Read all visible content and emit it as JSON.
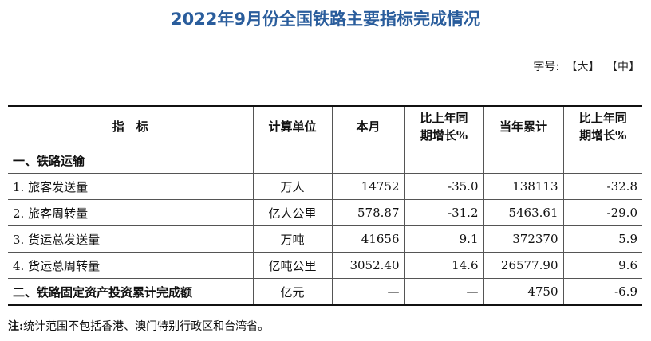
{
  "title": "2022年9月份全国铁路主要指标完成情况",
  "font_size": {
    "label": "字号:",
    "large": "【大】",
    "medium": "【中】"
  },
  "table": {
    "headers": {
      "indicator": "指　标",
      "unit": "计算单位",
      "month": "本月",
      "month_growth_line1": "比上年同",
      "month_growth_line2": "期增长%",
      "ytd": "当年累计",
      "ytd_growth_line1": "比上年同",
      "ytd_growth_line2": "期增长%"
    },
    "rows": [
      {
        "name": "一、铁路运输",
        "unit": "",
        "month": "",
        "month_growth": "",
        "ytd": "",
        "ytd_growth": ""
      },
      {
        "name": "1. 旅客发送量",
        "unit": "万人",
        "month": "14752",
        "month_growth": "-35.0",
        "ytd": "138113",
        "ytd_growth": "-32.8"
      },
      {
        "name": "2. 旅客周转量",
        "unit": "亿人公里",
        "month": "578.87",
        "month_growth": "-31.2",
        "ytd": "5463.61",
        "ytd_growth": "-29.0"
      },
      {
        "name": "3. 货运总发送量",
        "unit": "万吨",
        "month": "41656",
        "month_growth": "9.1",
        "ytd": "372370",
        "ytd_growth": "5.9"
      },
      {
        "name": "4. 货运总周转量",
        "unit": "亿吨公里",
        "month": "3052.40",
        "month_growth": "14.6",
        "ytd": "26577.90",
        "ytd_growth": "9.6"
      },
      {
        "name": "二、铁路固定资产投资累计完成额",
        "unit": "亿元",
        "month": "—",
        "month_growth": "—",
        "ytd": "4750",
        "ytd_growth": "-6.9"
      }
    ]
  },
  "note": {
    "label": "注:",
    "text": "统计范围不包括香港、澳门特别行政区和台湾省。"
  }
}
